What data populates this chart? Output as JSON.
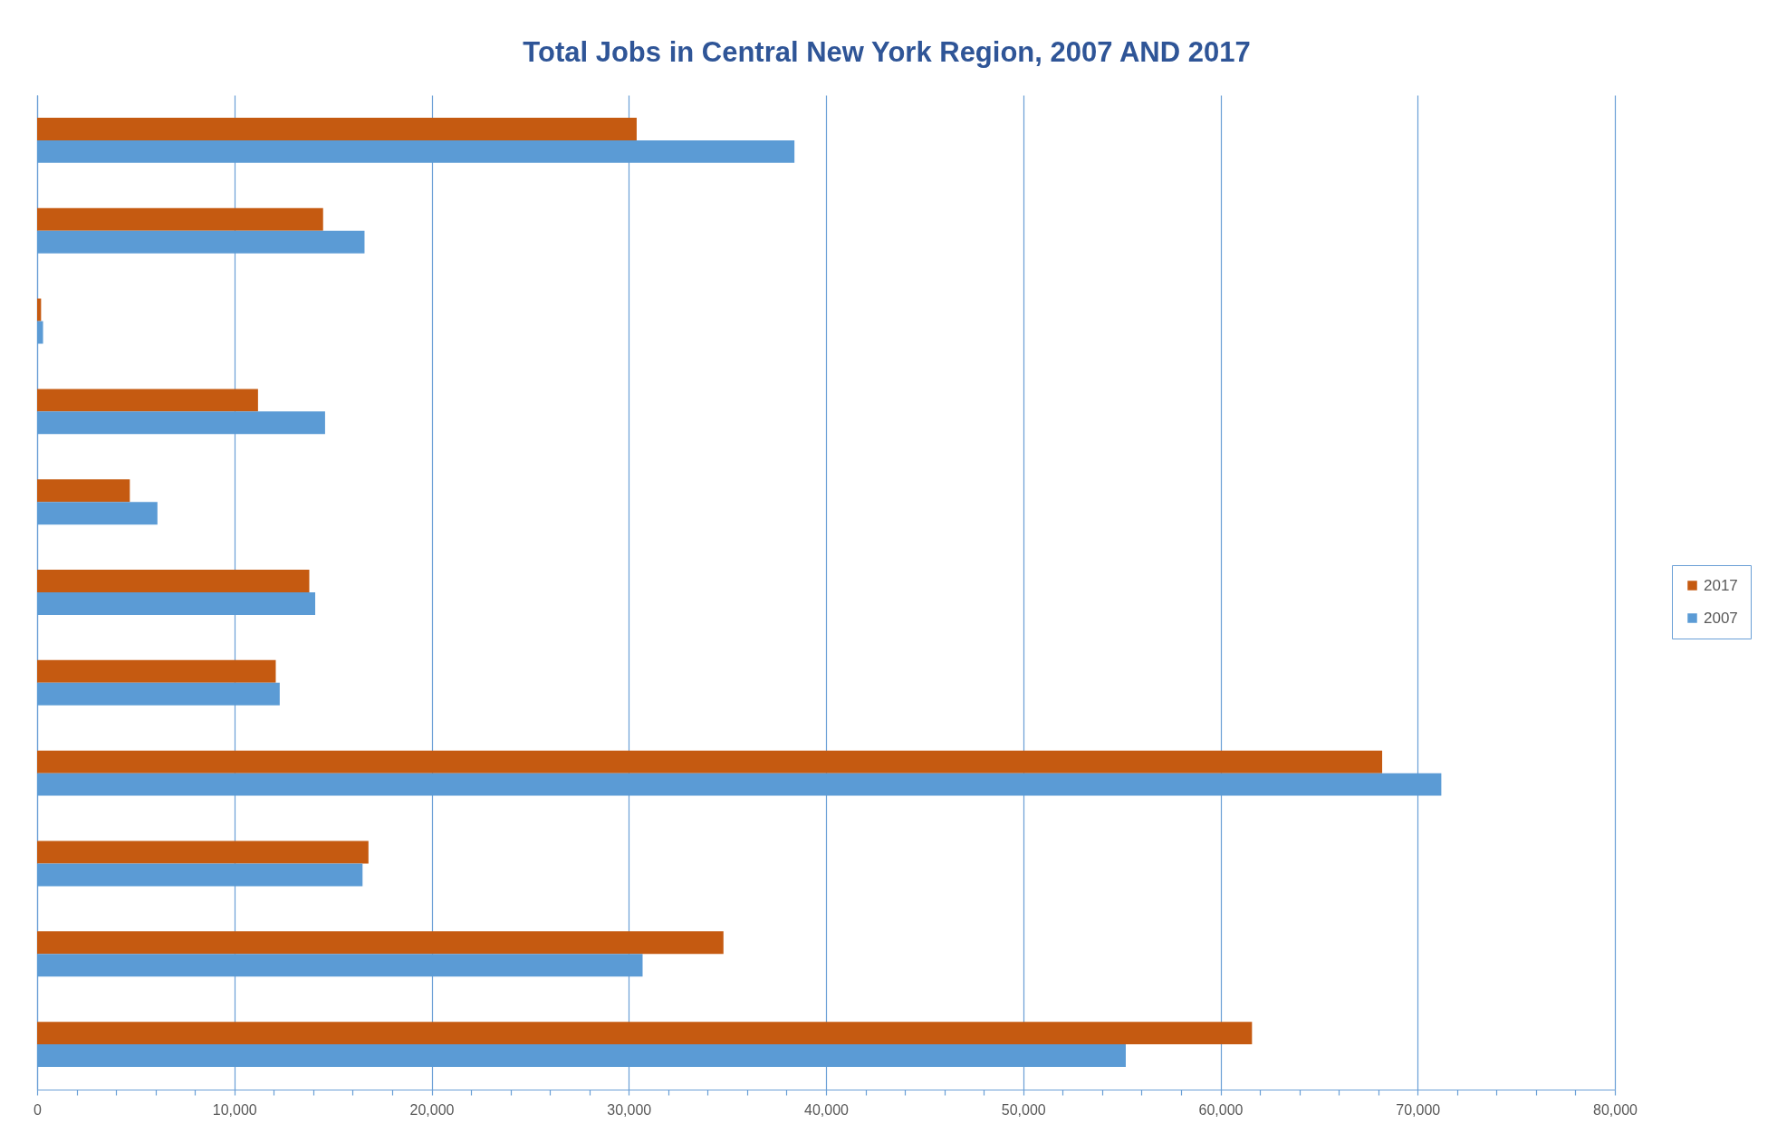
{
  "chart_data": {
    "type": "bar",
    "orientation": "horizontal",
    "title": "Total Jobs in Central New York Region, 2007 AND 2017",
    "categories": [
      null,
      null,
      null,
      null,
      null,
      null,
      null,
      null,
      null,
      null,
      null
    ],
    "series": [
      {
        "name": "2017",
        "color": "#c55a11",
        "values": [
          30400,
          14500,
          200,
          11200,
          4700,
          13800,
          12100,
          68200,
          16800,
          34800,
          61600
        ]
      },
      {
        "name": "2007",
        "color": "#5b9bd5",
        "values": [
          38400,
          16600,
          300,
          14600,
          6100,
          14100,
          12300,
          71200,
          16500,
          30700,
          55200
        ]
      }
    ],
    "xlim": [
      0,
      80000
    ],
    "xticks": [
      0,
      {
        "value": 2000,
        "label": null
      },
      {
        "value": 4000,
        "label": null
      },
      {
        "value": 6000,
        "label": null
      },
      {
        "value": 8000,
        "label": null
      },
      {
        "value": 10000,
        "label": "10,000"
      },
      {
        "value": 12000,
        "label": null
      },
      {
        "value": 14000,
        "label": null
      },
      {
        "value": 16000,
        "label": null
      },
      {
        "value": 18000,
        "label": null
      },
      {
        "value": 20000,
        "label": "20,000"
      },
      {
        "value": 22000,
        "label": null
      },
      {
        "value": 24000,
        "label": null
      },
      {
        "value": 26000,
        "label": null
      },
      {
        "value": 28000,
        "label": null
      },
      {
        "value": 30000,
        "label": "30,000"
      },
      {
        "value": 32000,
        "label": null
      },
      {
        "value": 34000,
        "label": null
      },
      {
        "value": 36000,
        "label": null
      },
      {
        "value": 38000,
        "label": null
      },
      {
        "value": 40000,
        "label": "40,000"
      },
      {
        "value": 42000,
        "label": null
      },
      {
        "value": 44000,
        "label": null
      },
      {
        "value": 46000,
        "label": null
      },
      {
        "value": 48000,
        "label": null
      },
      {
        "value": 50000,
        "label": "50,000"
      },
      {
        "value": 52000,
        "label": null
      },
      {
        "value": 54000,
        "label": null
      },
      {
        "value": 56000,
        "label": null
      },
      {
        "value": 58000,
        "label": null
      },
      {
        "value": 60000,
        "label": "60,000"
      },
      {
        "value": 62000,
        "label": null
      },
      {
        "value": 64000,
        "label": null
      },
      {
        "value": 66000,
        "label": null
      },
      {
        "value": 68000,
        "label": null
      },
      {
        "value": 70000,
        "label": "70,000"
      },
      {
        "value": 72000,
        "label": null
      },
      {
        "value": 74000,
        "label": null
      },
      {
        "value": 76000,
        "label": null
      },
      {
        "value": 78000,
        "label": null
      },
      {
        "value": 80000,
        "label": "80,000"
      }
    ],
    "grid": "x",
    "legend": "right",
    "tick_labels": "x"
  }
}
